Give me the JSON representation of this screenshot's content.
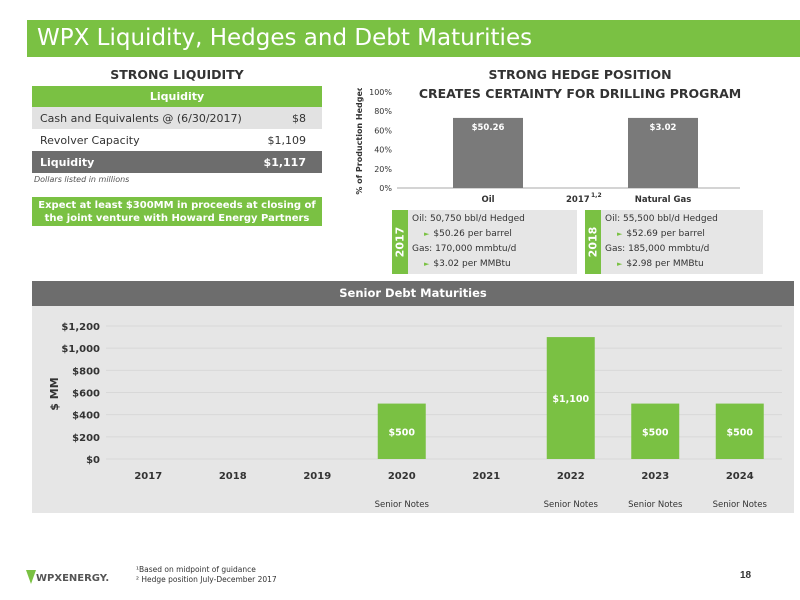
{
  "title": "WPX Liquidity, Hedges and Debt Maturities",
  "liquidity": {
    "heading": "STRONG LIQUIDITY",
    "table_header": "Liquidity",
    "rows": [
      {
        "label": "Cash and Equivalents @ (6/30/2017)",
        "value": "$8"
      },
      {
        "label": "Revolver Capacity",
        "value": "$1,109"
      }
    ],
    "total": {
      "label": "Liquidity",
      "value": "$1,117"
    },
    "note": "Dollars listed in millions",
    "jv_text": "Expect at least $300MM in proceeds at closing of the joint venture with Howard Energy Partners"
  },
  "hedge": {
    "heading_line1": "STRONG HEDGE POSITION",
    "heading_line2": "CREATES CERTAINTY FOR DRILLING PROGRAM",
    "y2017": {
      "year": "2017",
      "oil": "Oil:  50,750 bbl/d Hedged",
      "oil_price": "$50.26 per barrel",
      "gas": "Gas: 170,000 mmbtu/d",
      "gas_price": "$3.02 per MMBtu"
    },
    "y2018": {
      "year": "2018",
      "oil": "Oil:  55,500 bbl/d Hedged",
      "oil_price": "$52.69 per barrel",
      "gas": "Gas: 185,000 mmbtu/d",
      "gas_price": "$2.98 per MMBtu"
    }
  },
  "debt": {
    "heading": "Senior Debt Maturities"
  },
  "chart_data": [
    {
      "type": "bar",
      "categories": [
        "Oil",
        "Natural Gas"
      ],
      "values": [
        73,
        73
      ],
      "data_labels": [
        "$50.26",
        "$3.02"
      ],
      "center_label": "2017",
      "center_label_sup": "1,2",
      "ylabel": "% of Production Hedged",
      "ylim": [
        0,
        100
      ],
      "yticks": [
        "0%",
        "20%",
        "40%",
        "60%",
        "80%",
        "100%"
      ],
      "colors": {
        "bar": "#7a7a7a"
      }
    },
    {
      "type": "bar",
      "categories": [
        "2017",
        "2018",
        "2019",
        "2020",
        "2021",
        "2022",
        "2023",
        "2024"
      ],
      "values": [
        0,
        0,
        0,
        500,
        0,
        1100,
        500,
        500
      ],
      "data_labels": [
        "",
        "",
        "",
        "$500",
        "",
        "$1,100",
        "$500",
        "$500"
      ],
      "bar_notes": [
        "",
        "",
        "",
        "Senior Notes",
        "",
        "Senior Notes",
        "Senior Notes",
        "Senior Notes"
      ],
      "ylabel": "$ MM",
      "ylim": [
        0,
        1200
      ],
      "yticks": [
        "$0",
        "$200",
        "$400",
        "$600",
        "$800",
        "$1,000",
        "$1,200"
      ],
      "colors": {
        "bar": "#7ac143"
      }
    }
  ],
  "footnotes": [
    "¹Based on midpoint of guidance",
    "² Hedge position July-December 2017"
  ],
  "page_number": "18",
  "logo": {
    "text": "WPXENERGY."
  },
  "colors": {
    "accent": "#7ac143",
    "dark_gray": "#6d6d6d",
    "light_gray": "#e6e6e6"
  }
}
